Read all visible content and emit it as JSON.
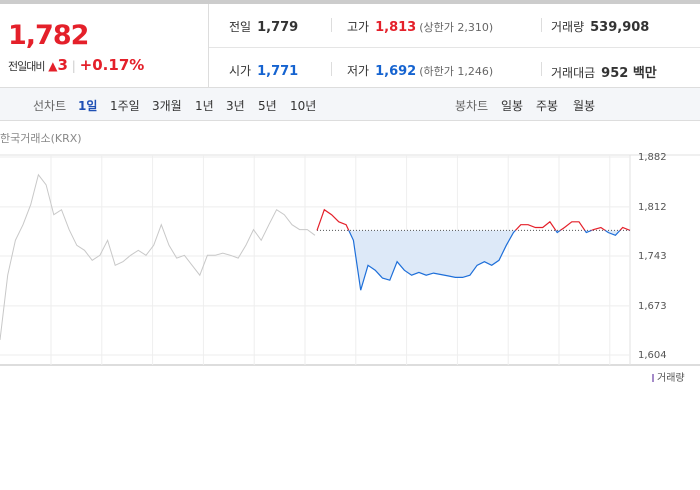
{
  "quote": {
    "price": "1,782",
    "change_label": "전일대비",
    "change": "3",
    "change_rate": "+0.17%"
  },
  "stats": [
    {
      "label": "전일",
      "value": "1,779"
    },
    {
      "label": "고가",
      "value": "1,813",
      "note": "(상한가 2,310)"
    },
    {
      "label": "거래량",
      "value": "539,908"
    },
    {
      "label": "시가",
      "value": "1,771"
    },
    {
      "label": "저가",
      "value": "1,692",
      "note": "(하한가 1,246)"
    },
    {
      "label": "거래대금",
      "value": "952 백만"
    }
  ],
  "tabs": {
    "line_label": "선차트",
    "line": [
      "1일",
      "1주일",
      "3개월",
      "1년",
      "3년",
      "5년",
      "10년"
    ],
    "candle_label": "봉차트",
    "candle": [
      "일봉",
      "주봉",
      "월봉"
    ]
  },
  "source": "한국거래소(KRX)",
  "chart_data": {
    "type": "line",
    "ylim": [
      1604,
      1882
    ],
    "yticks": [
      {
        "value": 1604,
        "label": "1,604"
      },
      {
        "value": 1673,
        "label": "1,673"
      },
      {
        "value": 1743,
        "label": "1,743"
      },
      {
        "value": 1812,
        "label": "1,812"
      },
      {
        "value": 1882,
        "label": "1,882"
      }
    ],
    "reference": 1779,
    "up_color": "#e4202a",
    "down_color": "#1e6fd9",
    "fill_color": "#dde9f8",
    "volume_label": "거래량",
    "series": [
      {
        "color": "#c8c8c8",
        "values": [
          1625,
          1716,
          1765,
          1787,
          1815,
          1857,
          1843,
          1801,
          1808,
          1780,
          1758,
          1751,
          1737,
          1744,
          1765,
          1730,
          1735,
          1744,
          1751,
          1744,
          1758,
          1787,
          1758,
          1740,
          1744,
          1730,
          1716,
          1744,
          1744,
          1747,
          1744,
          1740,
          1758,
          1780,
          1765,
          1787,
          1808,
          1801,
          1787,
          1780,
          1780,
          1772
        ]
      },
      {
        "color": "#1e6fd9",
        "values": [
          1779,
          1808,
          1801,
          1791,
          1787,
          1765,
          1695,
          1730,
          1723,
          1712,
          1709,
          1735,
          1723,
          1716,
          1720,
          1716,
          1719,
          1717,
          1715,
          1713,
          1713,
          1716,
          1730,
          1735,
          1730,
          1737,
          1758,
          1776,
          1787,
          1787,
          1783,
          1783,
          1791,
          1776,
          1783,
          1791,
          1791,
          1776,
          1780,
          1783,
          1776,
          1772,
          1783,
          1779
        ]
      }
    ]
  }
}
